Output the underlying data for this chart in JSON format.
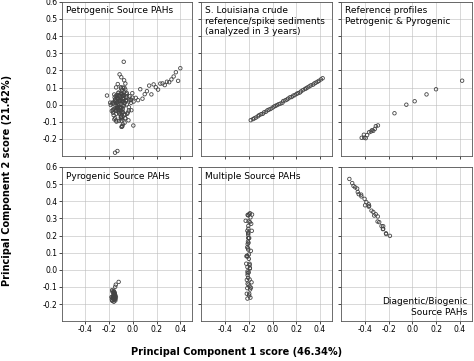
{
  "title_x": "Principal Component 1 score (46.34%)",
  "title_y": "Principal Component 2 score (21.42%)",
  "xlim": [
    -0.6,
    0.5
  ],
  "ylim": [
    -0.3,
    0.6
  ],
  "xticks": [
    -0.4,
    -0.2,
    0.0,
    0.2,
    0.4
  ],
  "yticks": [
    -0.2,
    -0.1,
    0.0,
    0.1,
    0.2,
    0.3,
    0.4,
    0.5,
    0.6
  ],
  "subplots": [
    {
      "title": "Petrogenic Source PAHs",
      "title_loc": "upper left",
      "data_type": "petrogenic"
    },
    {
      "title": "S. Louisiana crude\nreference/spike sediments\n(analyzed in 3 years)",
      "title_loc": "upper left",
      "data_type": "louisiana"
    },
    {
      "title": "Reference profiles\nPetrogenic & Pyrogenic",
      "title_loc": "upper left",
      "data_type": "reference"
    },
    {
      "title": "Pyrogenic Source PAHs",
      "title_loc": "upper left",
      "data_type": "pyrogenic"
    },
    {
      "title": "Multiple Source PAHs",
      "title_loc": "upper left",
      "data_type": "multiple"
    },
    {
      "title": "Diagentic/Biogenic\nSource PAHs",
      "title_loc": "lower right",
      "data_type": "diagentic"
    }
  ],
  "marker": "o",
  "marker_size": 2.5,
  "marker_color": "none",
  "marker_edge_color": "#444444",
  "marker_edge_width": 0.6,
  "grid_color": "#bbbbbb",
  "bg_color": "#ffffff",
  "font_size_label": 7,
  "font_size_title": 6.5,
  "font_size_axis": 5.5
}
